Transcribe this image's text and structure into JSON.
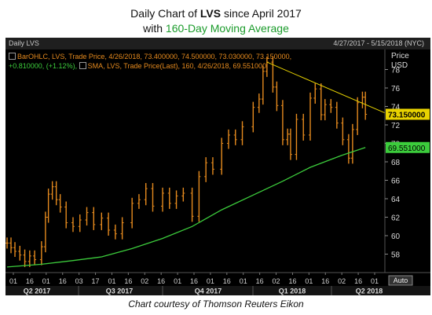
{
  "title": {
    "line1_prefix": "Daily Chart of ",
    "line1_ticker": "LVS",
    "line1_suffix": " since April 2017",
    "line2_prefix": "with ",
    "line2_highlight": "160-Day Moving Average"
  },
  "chart_header": {
    "name": "Daily LVS",
    "date_range": "4/27/2017 - 5/15/2018 (NYC)"
  },
  "legend": {
    "ohlc_line1": "BarOHLC, LVS, Trade Price, 4/26/2018, 73.400000, 74.500000, 73.030000, 73.150000,",
    "ohlc_line2": "+0.810000, (+1.12%),",
    "sma_line": "SMA, LVS, Trade Price(Last), 160, 4/26/2018, 69.551000"
  },
  "axis": {
    "price_label": "Price",
    "currency_label": "USD",
    "auto_label": "Auto"
  },
  "footer": "Chart courtesy of Thomson Reuters Eikon",
  "colors": {
    "background": "#000000",
    "price_bars": "#e58a1e",
    "sma_line": "#3ccc3c",
    "trendline": "#e8d200",
    "last_price_tag": "#e8d200",
    "sma_tag": "#3ccc3c"
  },
  "chart_data": {
    "type": "line",
    "ylim": [
      56,
      80
    ],
    "y_ticks": [
      58,
      60,
      62,
      64,
      66,
      68,
      70,
      72,
      74,
      76,
      78
    ],
    "x_tick_labels": [
      "01",
      "16",
      "01",
      "16",
      "03",
      "17",
      "01",
      "16",
      "02",
      "16",
      "01",
      "16",
      "01",
      "16",
      "01",
      "16",
      "02",
      "16",
      "01",
      "16",
      "02",
      "16",
      "01"
    ],
    "x_period_labels": [
      "Q2 2017",
      "Q3 2017",
      "Q4 2017",
      "Q1 2018",
      "Q2 2018"
    ],
    "series": [
      {
        "name": "LVS",
        "style": "ohlc",
        "x": [
          "2017-04-27",
          "2017-05-01",
          "2017-05-05",
          "2017-05-10",
          "2017-05-15",
          "2017-05-20",
          "2017-05-25",
          "2017-06-01",
          "2017-06-05",
          "2017-06-08",
          "2017-06-12",
          "2017-06-16",
          "2017-06-20",
          "2017-06-26",
          "2017-07-03",
          "2017-07-10",
          "2017-07-17",
          "2017-07-24",
          "2017-08-01",
          "2017-08-08",
          "2017-08-15",
          "2017-08-22",
          "2017-09-01",
          "2017-09-08",
          "2017-09-15",
          "2017-09-22",
          "2017-10-02",
          "2017-10-09",
          "2017-10-16",
          "2017-10-23",
          "2017-11-01",
          "2017-11-08",
          "2017-11-15",
          "2017-11-22",
          "2017-12-01",
          "2017-12-08",
          "2017-12-15",
          "2017-12-22",
          "2018-01-02",
          "2018-01-08",
          "2018-01-12",
          "2018-01-16",
          "2018-01-22",
          "2018-01-26",
          "2018-02-01",
          "2018-02-06",
          "2018-02-09",
          "2018-02-15",
          "2018-02-22",
          "2018-03-01",
          "2018-03-06",
          "2018-03-12",
          "2018-03-16",
          "2018-03-22",
          "2018-03-28",
          "2018-04-03",
          "2018-04-09",
          "2018-04-13",
          "2018-04-18",
          "2018-04-23",
          "2018-04-26"
        ],
        "values": [
          59.2,
          58.7,
          58.3,
          57.9,
          57.2,
          57.8,
          57.4,
          58.8,
          62.0,
          64.5,
          65.3,
          63.9,
          63.1,
          61.4,
          61.0,
          61.7,
          62.5,
          61.2,
          61.9,
          60.6,
          60.2,
          61.4,
          63.5,
          63.9,
          65.1,
          63.2,
          64.6,
          63.5,
          64.3,
          64.6,
          62.1,
          66.4,
          67.9,
          67.2,
          70.0,
          70.9,
          70.4,
          71.8,
          73.9,
          74.8,
          77.8,
          78.8,
          76.1,
          74.1,
          70.4,
          71.0,
          68.8,
          72.6,
          70.9,
          74.9,
          75.9,
          73.1,
          74.2,
          73.9,
          72.2,
          70.4,
          68.4,
          71.5,
          74.4,
          75.0,
          73.15
        ]
      },
      {
        "name": "SMA",
        "x": [
          "2017-04-27",
          "2017-06-01",
          "2017-07-03",
          "2017-08-01",
          "2017-09-01",
          "2017-10-02",
          "2017-11-01",
          "2017-12-01",
          "2018-01-02",
          "2018-02-01",
          "2018-03-01",
          "2018-04-02",
          "2018-04-26"
        ],
        "values": [
          56.6,
          56.9,
          57.3,
          57.7,
          58.6,
          59.7,
          61.0,
          62.8,
          64.4,
          65.9,
          67.4,
          68.7,
          69.551
        ]
      }
    ],
    "last_price": 73.15,
    "last_price_label": "73.150000",
    "sma_last_label": "69.551000"
  }
}
